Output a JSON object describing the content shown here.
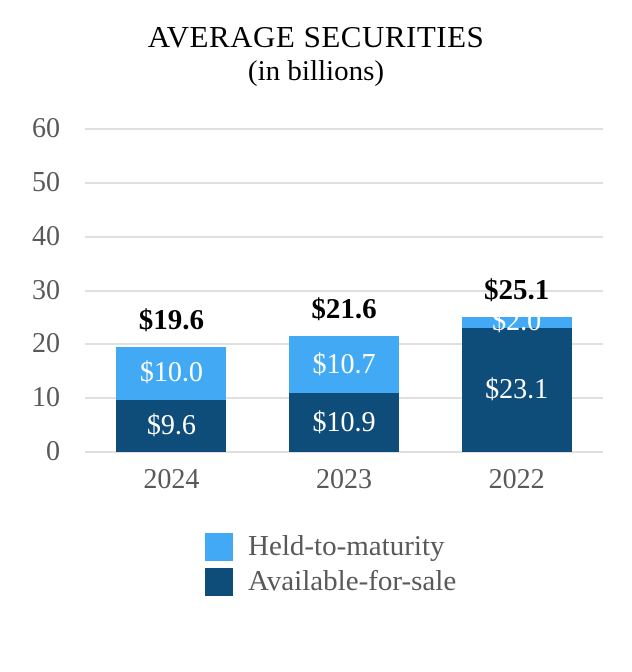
{
  "chart_data": {
    "type": "bar",
    "stacked": true,
    "title": "AVERAGE SECURITIES",
    "subtitle": "(in billions)",
    "categories": [
      "2024",
      "2023",
      "2022"
    ],
    "series": [
      {
        "name": "Held-to-maturity",
        "color": "#42AAF5",
        "values": [
          10.0,
          10.7,
          2.0
        ],
        "labels": [
          "$10.0",
          "$10.7",
          "$2.0"
        ]
      },
      {
        "name": "Available-for-sale",
        "color": "#0E4C7A",
        "values": [
          9.6,
          10.9,
          23.1
        ],
        "labels": [
          "$9.6",
          "$10.9",
          "$23.1"
        ]
      }
    ],
    "stack_order_bottom_to_top": [
      "Available-for-sale",
      "Held-to-maturity"
    ],
    "totals": [
      19.6,
      21.6,
      25.1
    ],
    "total_labels": [
      "$19.6",
      "$21.6",
      "$25.1"
    ],
    "y_axis": {
      "min": 0,
      "max": 60,
      "step": 10,
      "tick_labels": [
        "0",
        "10",
        "20",
        "30",
        "40",
        "50",
        "60"
      ]
    },
    "x_axis": {
      "tick_labels": [
        "2024",
        "2023",
        "2022"
      ]
    },
    "legend": {
      "position": "bottom",
      "items": [
        {
          "label": "Held-to-maturity",
          "color": "#42AAF5"
        },
        {
          "label": "Available-for-sale",
          "color": "#0E4C7A"
        }
      ]
    },
    "grid": true,
    "colors": {
      "background": "#FFFFFF",
      "grid_line": "#E0E0E0",
      "axis_text": "#595959",
      "total_label": "#000000",
      "segment_label": "#FFFFFF",
      "title_text": "#000000"
    }
  }
}
